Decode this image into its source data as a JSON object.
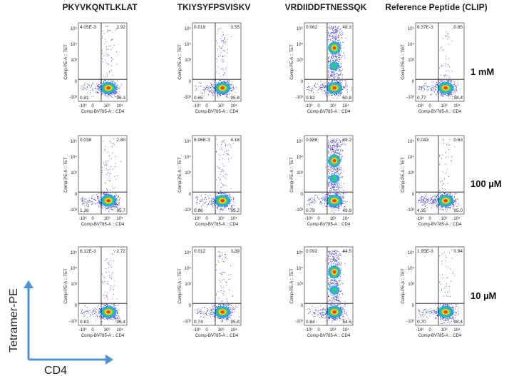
{
  "chart_data": {
    "type": "scatter",
    "columns": [
      "PKYVKQNTLKLAT",
      "TKIYSYFPSVISKV",
      "VRDIIDDFTNESSQK",
      "Reference Peptide (CLIP)"
    ],
    "rows": [
      "1 mM",
      "100 µM",
      "10 µM"
    ],
    "x_axis_label": "Comp-BV785-A :: CD4",
    "y_axis_label": "Comp-PE-A :: TET",
    "x_ticks": [
      "-10³",
      "0",
      "10³",
      "10⁴"
    ],
    "y_ticks": [
      "10⁵",
      "10⁴",
      "10³",
      "0",
      "-10³"
    ],
    "outer_x_label": "CD4",
    "outer_y_label": "Tetramer-PE",
    "quadrants": [
      [
        {
          "ul": "4.05E-3",
          "ur": "2.92",
          "ll": "0.81",
          "lr": "96.3"
        },
        {
          "ul": "0.019",
          "ur": "3.55",
          "ll": "0.65",
          "lr": "95.8"
        },
        {
          "ul": "0.062",
          "ur": "48.3",
          "ll": "0.82",
          "lr": "50.8"
        },
        {
          "ul": "6.37E-3",
          "ur": "0.85",
          "ll": "0.77",
          "lr": "98.4"
        }
      ],
      [
        {
          "ul": "0.038",
          "ur": "2.80",
          "ll": "1.36",
          "lr": "95.7"
        },
        {
          "ul": "5.96E-3",
          "ur": "4.18",
          "ll": "0.66",
          "lr": "95.2"
        },
        {
          "ul": "0.088",
          "ur": "49.2",
          "ll": "0.79",
          "lr": "49.9"
        },
        {
          "ul": "0.043",
          "ur": "0.63",
          "ll": "4.35",
          "lr": "95.0"
        }
      ],
      [
        {
          "ul": "6.12E-3",
          "ur": "2.72",
          "ll": "0.83",
          "lr": "96.4"
        },
        {
          "ul": "0.012",
          "ur": "3.39",
          "ll": "0.74",
          "lr": "95.8"
        },
        {
          "ul": "0.092",
          "ur": "44.5",
          "ll": "0.84",
          "lr": "54.5"
        },
        {
          "ul": "1.95E-3",
          "ur": "0.94",
          "ll": "0.70",
          "lr": "98.4"
        }
      ]
    ],
    "point_color": "#3333cc",
    "density_colors": [
      "#1aa6ff",
      "#33cc66",
      "#ffd11a",
      "#ff3300"
    ],
    "arrow_color": "#4f8fd6"
  }
}
